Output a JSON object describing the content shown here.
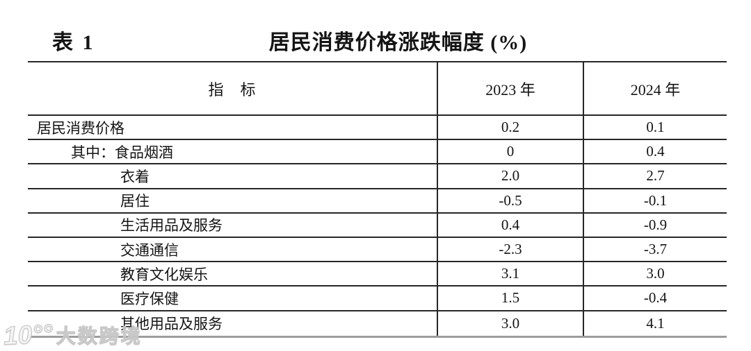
{
  "title": {
    "table_label": "表 1",
    "text": "居民消费价格涨跌幅度 (%)"
  },
  "table": {
    "columns": {
      "indicator": "指　标",
      "y2023": "2023 年",
      "y2024": "2024 年"
    },
    "rows": [
      {
        "label": "居民消费价格",
        "indent": 0,
        "y2023": "0.2",
        "y2024": "0.1"
      },
      {
        "label": "其中：食品烟酒",
        "indent": 1,
        "y2023": "0",
        "y2024": "0.4"
      },
      {
        "label": "衣着",
        "indent": 2,
        "y2023": "2.0",
        "y2024": "2.7"
      },
      {
        "label": "居住",
        "indent": 2,
        "y2023": "-0.5",
        "y2024": "-0.1"
      },
      {
        "label": "生活用品及服务",
        "indent": 2,
        "y2023": "0.4",
        "y2024": "-0.9"
      },
      {
        "label": "交通通信",
        "indent": 2,
        "y2023": "-2.3",
        "y2024": "-3.7"
      },
      {
        "label": "教育文化娱乐",
        "indent": 2,
        "y2023": "3.1",
        "y2024": "3.0"
      },
      {
        "label": "医疗保健",
        "indent": 2,
        "y2023": "1.5",
        "y2024": "-0.4"
      },
      {
        "label": "其他用品及服务",
        "indent": 2,
        "y2023": "3.0",
        "y2024": "4.1"
      }
    ]
  },
  "chart_data": {
    "type": "table",
    "title": "居民消费价格涨跌幅度 (%)",
    "categories": [
      "居民消费价格",
      "其中：食品烟酒",
      "衣着",
      "居住",
      "生活用品及服务",
      "交通通信",
      "教育文化娱乐",
      "医疗保健",
      "其他用品及服务"
    ],
    "series": [
      {
        "name": "2023 年",
        "values": [
          0.2,
          0,
          2.0,
          -0.5,
          0.4,
          -2.3,
          3.1,
          1.5,
          3.0
        ]
      },
      {
        "name": "2024 年",
        "values": [
          0.1,
          0.4,
          2.7,
          -0.1,
          -0.9,
          -3.7,
          3.0,
          -0.4,
          4.1
        ]
      }
    ]
  },
  "watermark": {
    "logo": "10°°",
    "text": "大数跨境"
  },
  "colors": {
    "line_dark": "#262626",
    "line_bottom": "#9c9c9c",
    "text": "#141414",
    "background": "#ffffff"
  }
}
